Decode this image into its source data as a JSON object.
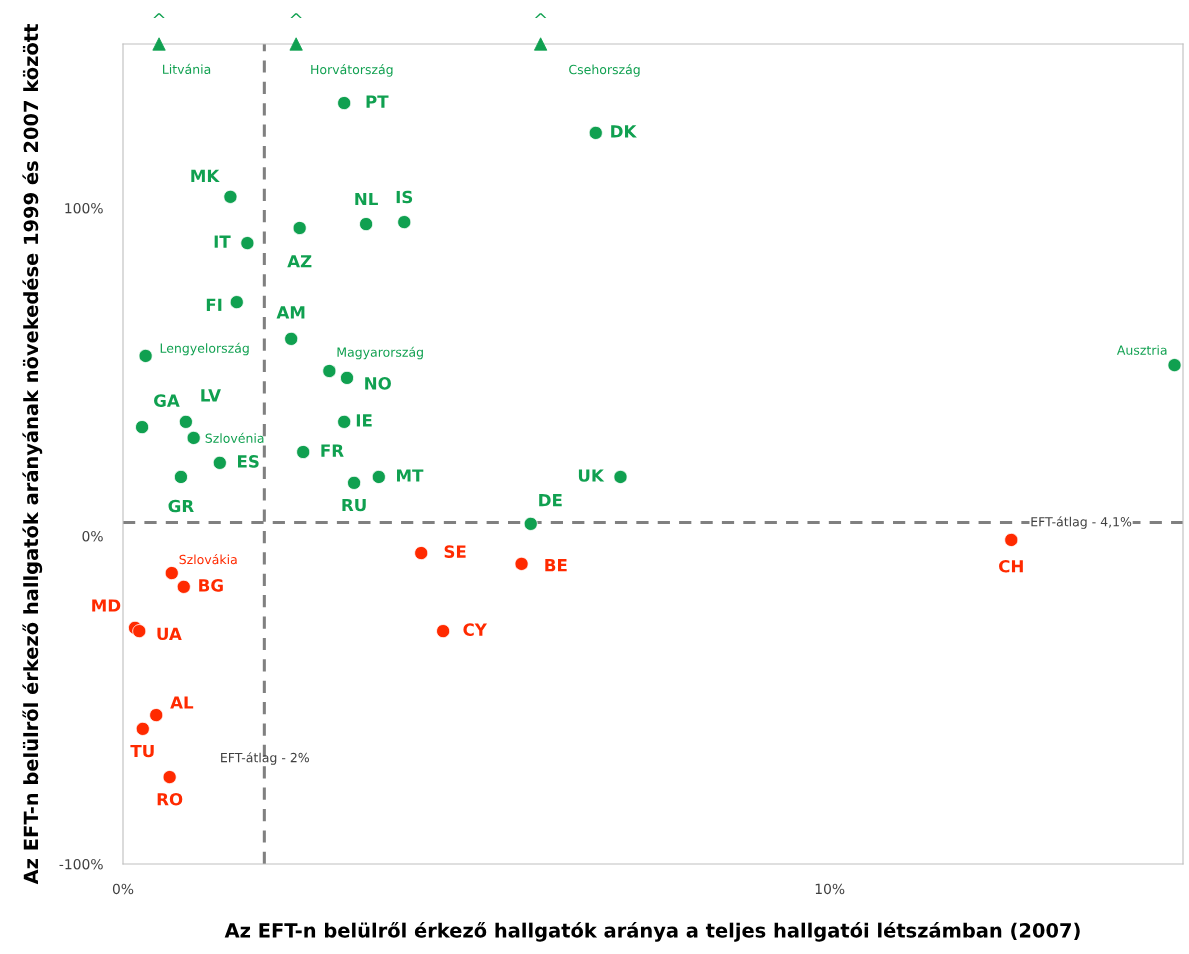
{
  "chart_data": {
    "type": "scatter",
    "xlabel": "Az EFT-n belülről érkező hallgatók aránya a teljes hallgatói létszámban (2007)",
    "ylabel": "Az EFT-n belülről érkező hallgatók arányának növekedése 1999 és 2007 között",
    "xlim": [
      0,
      15
    ],
    "xticks": [
      {
        "value": 0,
        "label": "0%"
      },
      {
        "value": 10,
        "label": "10%"
      }
    ],
    "ylim": [
      -100,
      150
    ],
    "yticks": [
      {
        "value": -100,
        "label": "-100%"
      },
      {
        "value": 0,
        "label": "0%"
      },
      {
        "value": 100,
        "label": "100%"
      }
    ],
    "grid": false,
    "series": [
      {
        "color": "#10a050",
        "marker": "circle",
        "x": [
          3.13,
          6.69,
          1.52,
          1.76,
          2.5,
          3.44,
          3.98,
          1.61,
          2.38,
          0.32,
          2.92,
          3.17,
          14.88,
          0.27,
          0.89,
          1.0,
          3.13,
          1.37,
          2.55,
          0.82,
          3.27,
          3.62,
          7.04,
          5.77
        ],
        "values": [
          132.0,
          122.9,
          103.4,
          89.3,
          93.9,
          95.1,
          95.7,
          71.3,
          60.1,
          54.9,
          50.3,
          48.2,
          52.1,
          33.2,
          34.8,
          29.9,
          34.8,
          22.3,
          25.6,
          18.0,
          16.2,
          18.0,
          18.0,
          3.7
        ],
        "value_labels": [
          "PT",
          "DK",
          "MK",
          "IT",
          "AZ",
          "NL",
          "IS",
          "FI",
          "AM",
          "Lengyelország",
          "Magyarország",
          "NO",
          "Ausztria",
          "GA",
          "LV",
          "Szlovénia",
          "IE",
          "ES",
          "FR",
          "GR",
          "RU",
          "MT",
          "UK",
          "DE"
        ]
      },
      {
        "color": "#ff2a00",
        "marker": "circle",
        "x": [
          4.22,
          5.64,
          12.57,
          0.69,
          0.86,
          0.17,
          0.23,
          4.53,
          0.47,
          0.28,
          0.66
        ],
        "values": [
          -5.2,
          -8.5,
          -1.2,
          -11.3,
          -15.5,
          -28.0,
          -29.0,
          -29.0,
          -54.6,
          -58.8,
          -73.5
        ],
        "value_labels": [
          "SE",
          "BE",
          "CH",
          "Szlovákia",
          "BG",
          "MD",
          "UA",
          "CY",
          "AL",
          "TU",
          "RO"
        ]
      },
      {
        "color": "#10a050",
        "marker": "triangle",
        "x": [
          0.51,
          2.45,
          5.91
        ],
        "values": [
          150,
          150,
          150
        ],
        "value_labels": [
          "Litvánia",
          "Horvátország",
          "Csehország"
        ]
      }
    ],
    "annotations": [
      {
        "text": "^",
        "x": 0.51,
        "y": 150
      },
      {
        "text": "^",
        "x": 2.45,
        "y": 150
      },
      {
        "text": "^",
        "x": 5.91,
        "y": 150
      }
    ],
    "ref_lines": [
      {
        "axis": "x",
        "value": 2,
        "label": "EFT-átlag - 2%",
        "color": "#808080",
        "line_style": "dashed"
      },
      {
        "axis": "y",
        "value": 4.1,
        "label": "EFT-átlag - 4,1%",
        "color": "#808080",
        "line_style": "dashed"
      }
    ]
  }
}
